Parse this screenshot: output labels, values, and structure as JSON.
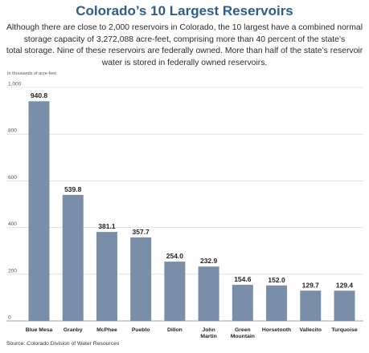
{
  "header": {
    "title": "Colorado’s 10 Largest Reservoirs",
    "description_lines": [
      "Although there are close to 2,000 reservoirs in Colorado, the 10 largest have a combined normal",
      "storage capacity of 3,272,088 acre-feet, comprising more than 40 percent of the state’s",
      "total storage. Nine of these reservoirs are federally owned. More than half of the state’s reservoir",
      "water is stored in federally owned reservoirs."
    ]
  },
  "footer": {
    "source": "Source: Colorado Division of Water Resources"
  },
  "chart_data": {
    "type": "bar",
    "title": "Colorado’s 10 Largest Reservoirs",
    "ylabel": "In thousands of acre-feet",
    "xlabel": "",
    "ylim": [
      0,
      1000
    ],
    "yticks": [
      0,
      200,
      400,
      600,
      800,
      1000
    ],
    "ytick_labels": [
      "0",
      "200",
      "400",
      "600",
      "800",
      "1,000"
    ],
    "grid": true,
    "bar_color": "#7a8ea9",
    "categories": [
      [
        "Blue Mesa"
      ],
      [
        "Granby"
      ],
      [
        "McPhee"
      ],
      [
        "Pueblo"
      ],
      [
        "Dillon"
      ],
      [
        "John",
        "Martin"
      ],
      [
        "Green",
        "Mountain"
      ],
      [
        "Horsetooth"
      ],
      [
        "Vallecito"
      ],
      [
        "Turquoise"
      ]
    ],
    "values": [
      940.8,
      539.8,
      381.1,
      357.7,
      254.0,
      232.9,
      154.6,
      152.0,
      129.7,
      129.4
    ],
    "value_labels": [
      "940.8",
      "539.8",
      "381.1",
      "357.7",
      "254.0",
      "232.9",
      "154.6",
      "152.0",
      "129.7",
      "129.4"
    ]
  }
}
